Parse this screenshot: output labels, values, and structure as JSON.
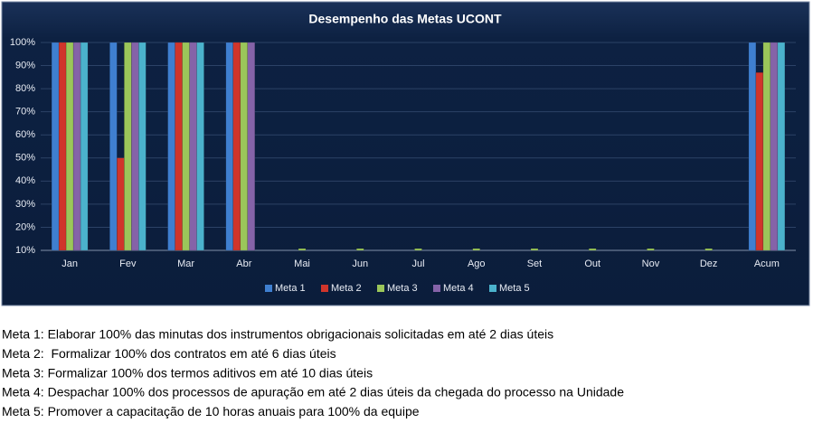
{
  "chart_data": {
    "type": "bar",
    "title": "Desempenho das Metas UCONT",
    "categories": [
      "Jan",
      "Fev",
      "Mar",
      "Abr",
      "Mai",
      "Jun",
      "Jul",
      "Ago",
      "Set",
      "Out",
      "Nov",
      "Dez",
      "Acum"
    ],
    "series": [
      {
        "name": "Meta 1",
        "color": "#3f7fd0",
        "values": [
          100,
          100,
          100,
          100,
          null,
          null,
          null,
          null,
          null,
          null,
          null,
          null,
          100
        ]
      },
      {
        "name": "Meta 2",
        "color": "#d0352b",
        "values": [
          100,
          50,
          100,
          100,
          null,
          null,
          null,
          null,
          null,
          null,
          null,
          null,
          87
        ]
      },
      {
        "name": "Meta 3",
        "color": "#9bc65a",
        "values": [
          100,
          100,
          100,
          100,
          10,
          10,
          10,
          10,
          10,
          10,
          10,
          10,
          100
        ]
      },
      {
        "name": "Meta 4",
        "color": "#8563a8",
        "values": [
          100,
          100,
          100,
          100,
          null,
          null,
          null,
          null,
          null,
          null,
          null,
          null,
          100
        ]
      },
      {
        "name": "Meta 5",
        "color": "#4bb2cc",
        "values": [
          100,
          100,
          100,
          null,
          null,
          null,
          null,
          null,
          null,
          null,
          null,
          null,
          100
        ]
      }
    ],
    "ylim": [
      10,
      100
    ],
    "yticks": [
      {
        "value": 10,
        "label": "10%"
      },
      {
        "value": 20,
        "label": "20%"
      },
      {
        "value": 30,
        "label": "30%"
      },
      {
        "value": 40,
        "label": "40%"
      },
      {
        "value": 50,
        "label": "50%"
      },
      {
        "value": 60,
        "label": "60%"
      },
      {
        "value": 70,
        "label": "70%"
      },
      {
        "value": 80,
        "label": "80%"
      },
      {
        "value": 90,
        "label": "90%"
      },
      {
        "value": 100,
        "label": "100%"
      }
    ],
    "grid": true,
    "legend": "bottom"
  },
  "notes": [
    "Meta 1: Elaborar 100% das minutas dos instrumentos obrigacionais solicitadas em até 2 dias úteis",
    "Meta 2:  Formalizar 100% dos contratos em até 6 dias úteis",
    "Meta 3: Formalizar 100% dos termos aditivos em até 10 dias úteis",
    "Meta 4: Despachar 100% dos processos de apuração em até 2 dias úteis da chegada do processo na Unidade",
    "Meta 5: Promover a capacitação de 10 horas anuais para 100% da equipe"
  ]
}
